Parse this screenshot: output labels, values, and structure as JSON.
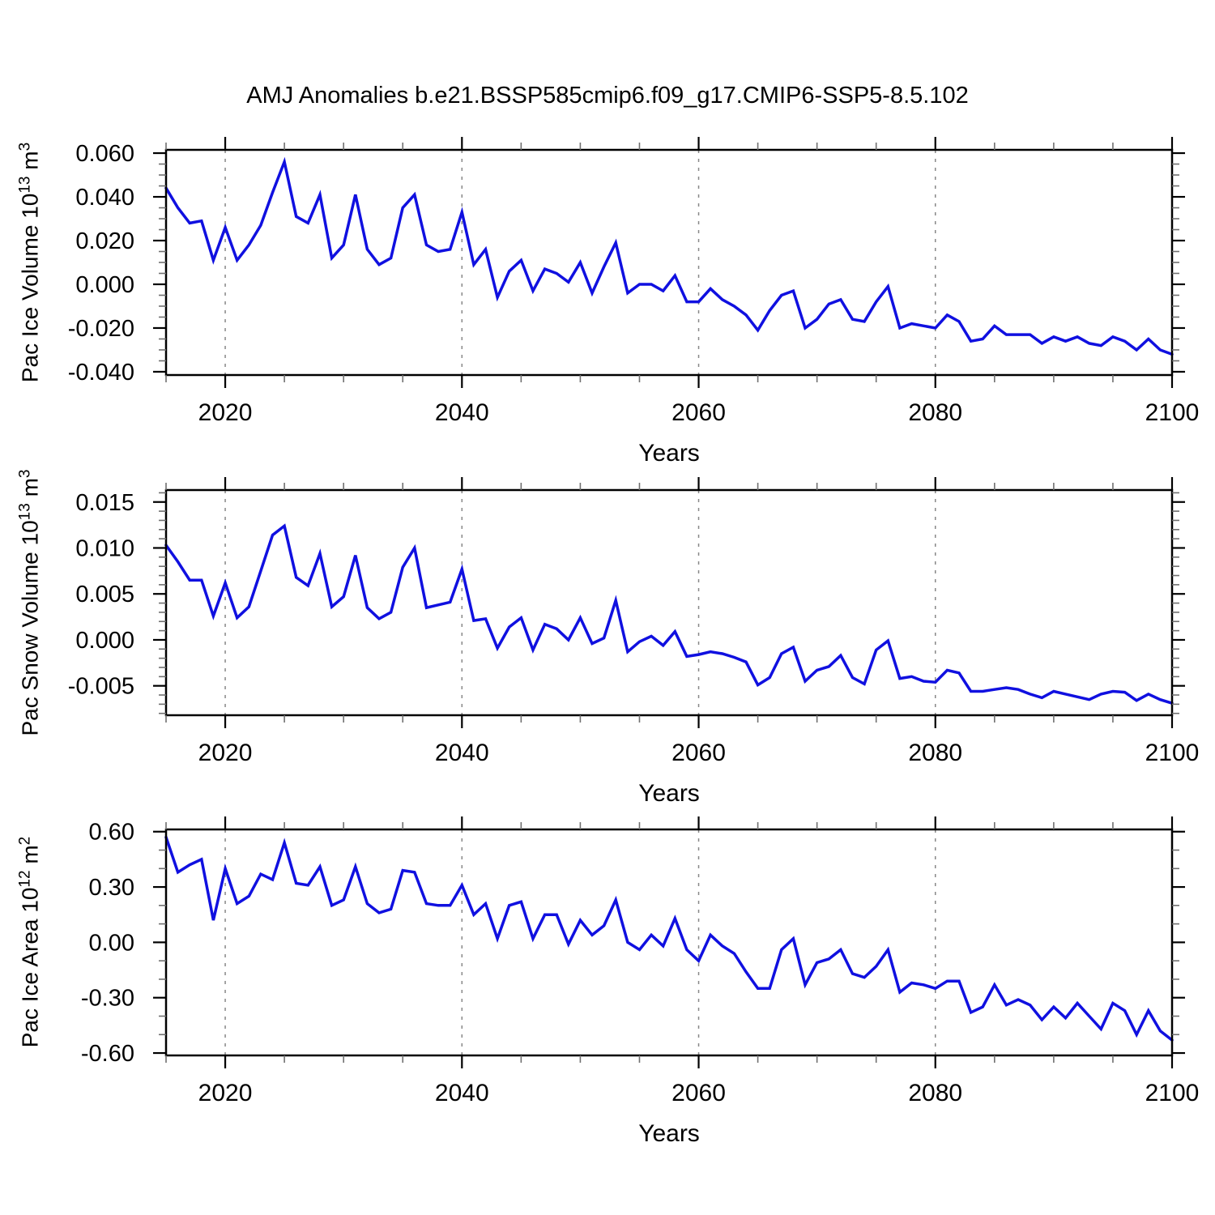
{
  "title": "AMJ Anomalies b.e21.BSSP585cmip6.f09_g17.CMIP6-SSP5-8.5.102",
  "colors": {
    "line": "#1010e0",
    "frame": "#000000",
    "grid": "#888888",
    "major_tick": "#000000",
    "minor_tick": "#707070",
    "text": "#000000"
  },
  "chart_data": {
    "type": "line",
    "title": "AMJ Anomalies b.e21.BSSP585cmip6.f09_g17.CMIP6-SSP5-8.5.102",
    "xlabel": "Years",
    "legend": "none",
    "grid": "vertical-dashed-at-major-x-ticks",
    "xlim": [
      2015,
      2100
    ],
    "x_ticks": [
      2020,
      2040,
      2060,
      2080,
      2100
    ],
    "x_minor_step": 5,
    "years": [
      2015,
      2016,
      2017,
      2018,
      2019,
      2020,
      2021,
      2022,
      2023,
      2024,
      2025,
      2026,
      2027,
      2028,
      2029,
      2030,
      2031,
      2032,
      2033,
      2034,
      2035,
      2036,
      2037,
      2038,
      2039,
      2040,
      2041,
      2042,
      2043,
      2044,
      2045,
      2046,
      2047,
      2048,
      2049,
      2050,
      2051,
      2052,
      2053,
      2054,
      2055,
      2056,
      2057,
      2058,
      2059,
      2060,
      2061,
      2062,
      2063,
      2064,
      2065,
      2066,
      2067,
      2068,
      2069,
      2070,
      2071,
      2072,
      2073,
      2074,
      2075,
      2076,
      2077,
      2078,
      2079,
      2080,
      2081,
      2082,
      2083,
      2084,
      2085,
      2086,
      2087,
      2088,
      2089,
      2090,
      2091,
      2092,
      2093,
      2094,
      2095,
      2096,
      2097,
      2098,
      2099,
      2100
    ],
    "panels": [
      {
        "name": "pac-ice-volume",
        "ylabel": {
          "pre": "Pac Ice Volume 10",
          "sup1": "13",
          "mid": " m",
          "sup2": "3"
        },
        "ylabel_text": "Pac Ice Volume 10^13 m^3",
        "ylim": [
          -0.0415,
          0.0615
        ],
        "y_minor_step": 0.005,
        "y_ticks": [
          {
            "label": "0.060",
            "v": 0.06
          },
          {
            "label": "0.040",
            "v": 0.04
          },
          {
            "label": "0.020",
            "v": 0.02
          },
          {
            "label": "0.000",
            "v": 0.0
          },
          {
            "label": "-0.020",
            "v": -0.02
          },
          {
            "label": "-0.040",
            "v": -0.04
          }
        ],
        "values": [
          0.044,
          0.035,
          0.028,
          0.029,
          0.011,
          0.026,
          0.011,
          0.018,
          0.027,
          0.042,
          0.056,
          0.031,
          0.028,
          0.041,
          0.012,
          0.018,
          0.041,
          0.016,
          0.009,
          0.012,
          0.035,
          0.041,
          0.018,
          0.015,
          0.016,
          0.033,
          0.009,
          0.016,
          -0.006,
          0.006,
          0.011,
          -0.003,
          0.007,
          0.005,
          0.001,
          0.01,
          -0.004,
          0.008,
          0.019,
          -0.004,
          0.0,
          0.0,
          -0.003,
          0.004,
          -0.008,
          -0.008,
          -0.002,
          -0.007,
          -0.01,
          -0.014,
          -0.021,
          -0.012,
          -0.005,
          -0.003,
          -0.02,
          -0.016,
          -0.009,
          -0.007,
          -0.016,
          -0.017,
          -0.008,
          -0.001,
          -0.02,
          -0.018,
          -0.019,
          -0.02,
          -0.014,
          -0.017,
          -0.026,
          -0.025,
          -0.019,
          -0.023,
          -0.023,
          -0.023,
          -0.027,
          -0.024,
          -0.026,
          -0.024,
          -0.027,
          -0.028,
          -0.024,
          -0.026,
          -0.03,
          -0.025,
          -0.03,
          -0.032
        ]
      },
      {
        "name": "pac-snow-volume",
        "ylabel": {
          "pre": "Pac Snow Volume 10",
          "sup1": "13",
          "mid": " m",
          "sup2": "3"
        },
        "ylabel_text": "Pac Snow Volume 10^13 m^3",
        "ylim": [
          -0.0082,
          0.0163
        ],
        "y_minor_step": 0.001,
        "y_ticks": [
          {
            "label": "0.015",
            "v": 0.015
          },
          {
            "label": "0.010",
            "v": 0.01
          },
          {
            "label": "0.005",
            "v": 0.005
          },
          {
            "label": "0.000",
            "v": 0.0
          },
          {
            "label": "-0.005",
            "v": -0.005
          }
        ],
        "values": [
          0.0103,
          0.0085,
          0.0065,
          0.0065,
          0.0026,
          0.0062,
          0.0024,
          0.0036,
          0.0075,
          0.0114,
          0.0124,
          0.0068,
          0.0059,
          0.0094,
          0.0036,
          0.0047,
          0.0092,
          0.0035,
          0.0023,
          0.003,
          0.0079,
          0.01,
          0.0035,
          0.0038,
          0.0041,
          0.0077,
          0.0021,
          0.0023,
          -0.0009,
          0.0014,
          0.0024,
          -0.0011,
          0.0017,
          0.0012,
          0.0,
          0.0024,
          -0.0004,
          0.0002,
          0.0043,
          -0.0013,
          -0.0002,
          0.0004,
          -0.0006,
          0.0009,
          -0.0018,
          -0.0016,
          -0.0013,
          -0.0015,
          -0.0019,
          -0.0024,
          -0.0049,
          -0.0041,
          -0.0015,
          -0.0008,
          -0.0045,
          -0.0033,
          -0.0029,
          -0.0017,
          -0.0041,
          -0.0048,
          -0.0011,
          -0.0001,
          -0.0042,
          -0.004,
          -0.0045,
          -0.0046,
          -0.0033,
          -0.0036,
          -0.0056,
          -0.0056,
          -0.0054,
          -0.0052,
          -0.0054,
          -0.0059,
          -0.0063,
          -0.0056,
          -0.0059,
          -0.0062,
          -0.0065,
          -0.0059,
          -0.0056,
          -0.0057,
          -0.0066,
          -0.0059,
          -0.0065,
          -0.0069
        ]
      },
      {
        "name": "pac-ice-area",
        "ylabel": {
          "pre": "Pac Ice Area 10",
          "sup1": "12",
          "mid": " m",
          "sup2": "2"
        },
        "ylabel_text": "Pac Ice Area 10^12 m^2",
        "ylim": [
          -0.613,
          0.612
        ],
        "y_minor_step": 0.1,
        "y_ticks": [
          {
            "label": "0.60",
            "v": 0.6
          },
          {
            "label": "0.30",
            "v": 0.3
          },
          {
            "label": "0.00",
            "v": 0.0
          },
          {
            "label": "-0.30",
            "v": -0.3
          },
          {
            "label": "-0.60",
            "v": -0.6
          }
        ],
        "values": [
          0.57,
          0.38,
          0.42,
          0.45,
          0.12,
          0.4,
          0.21,
          0.25,
          0.37,
          0.34,
          0.54,
          0.32,
          0.31,
          0.41,
          0.2,
          0.23,
          0.41,
          0.21,
          0.16,
          0.18,
          0.39,
          0.38,
          0.21,
          0.2,
          0.2,
          0.31,
          0.15,
          0.21,
          0.02,
          0.2,
          0.22,
          0.02,
          0.15,
          0.15,
          -0.01,
          0.12,
          0.04,
          0.09,
          0.23,
          0.0,
          -0.04,
          0.04,
          -0.02,
          0.13,
          -0.04,
          -0.1,
          0.04,
          -0.02,
          -0.06,
          -0.16,
          -0.25,
          -0.25,
          -0.04,
          0.02,
          -0.23,
          -0.11,
          -0.09,
          -0.04,
          -0.17,
          -0.19,
          -0.13,
          -0.04,
          -0.27,
          -0.22,
          -0.23,
          -0.25,
          -0.21,
          -0.21,
          -0.38,
          -0.35,
          -0.23,
          -0.34,
          -0.31,
          -0.34,
          -0.42,
          -0.35,
          -0.41,
          -0.33,
          -0.4,
          -0.47,
          -0.33,
          -0.37,
          -0.5,
          -0.37,
          -0.48,
          -0.53
        ]
      }
    ]
  }
}
